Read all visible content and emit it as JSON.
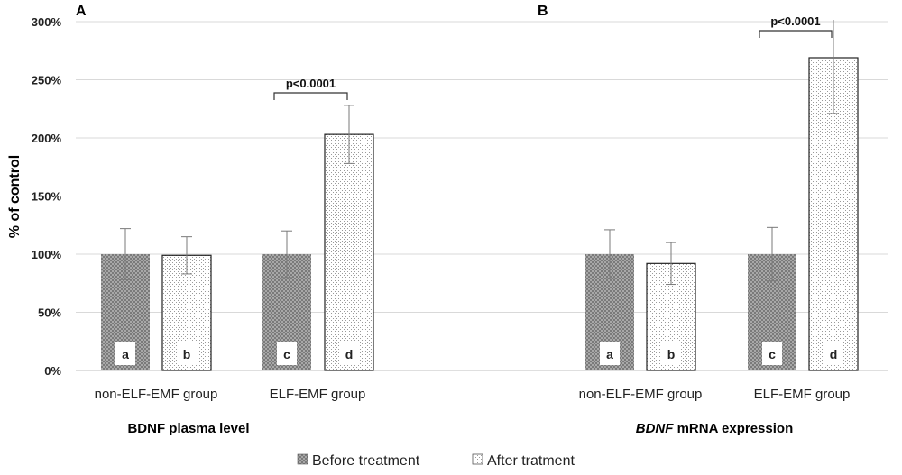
{
  "y_axis_label": "% of control",
  "legend": {
    "before": "Before treatment",
    "after": "After tratment"
  },
  "chart_data": [
    {
      "type": "bar",
      "panel": "A",
      "title_bold_part": "BDNF",
      "title_rest": " plasma level",
      "title": "BDNF plasma level",
      "ylabel": "% of control",
      "ylim": [
        0,
        300
      ],
      "ytick_labels": [
        "0%",
        "50%",
        "100%",
        "150%",
        "200%",
        "250%",
        "300%"
      ],
      "yticks": [
        0,
        50,
        100,
        150,
        200,
        250,
        300
      ],
      "categories": [
        "non-ELF-EMF group",
        "ELF-EMF group"
      ],
      "series": [
        {
          "name": "Before treatment",
          "values": [
            100,
            100
          ],
          "errors": [
            22,
            20
          ],
          "bar_labels": [
            "a",
            "c"
          ]
        },
        {
          "name": "After tratment",
          "values": [
            99,
            203
          ],
          "errors": [
            16,
            25
          ],
          "bar_labels": [
            "b",
            "d"
          ]
        }
      ],
      "annotation": {
        "text": "p<0.0001",
        "category": "ELF-EMF group"
      }
    },
    {
      "type": "bar",
      "panel": "B",
      "title_bold_part": "BDNF",
      "title_rest": " mRNA expression",
      "title": "BDNF mRNA expression",
      "ylabel": "% of control",
      "ylim": [
        0,
        300
      ],
      "categories": [
        "non-ELF-EMF group",
        "ELF-EMF group"
      ],
      "series": [
        {
          "name": "Before treatment",
          "values": [
            100,
            100
          ],
          "errors": [
            21,
            23
          ],
          "bar_labels": [
            "a",
            "c"
          ]
        },
        {
          "name": "After tratment",
          "values": [
            92,
            269
          ],
          "errors": [
            18,
            48
          ],
          "bar_labels": [
            "b",
            "d"
          ]
        }
      ],
      "annotation": {
        "text": "p<0.0001",
        "category": "ELF-EMF group"
      }
    }
  ]
}
